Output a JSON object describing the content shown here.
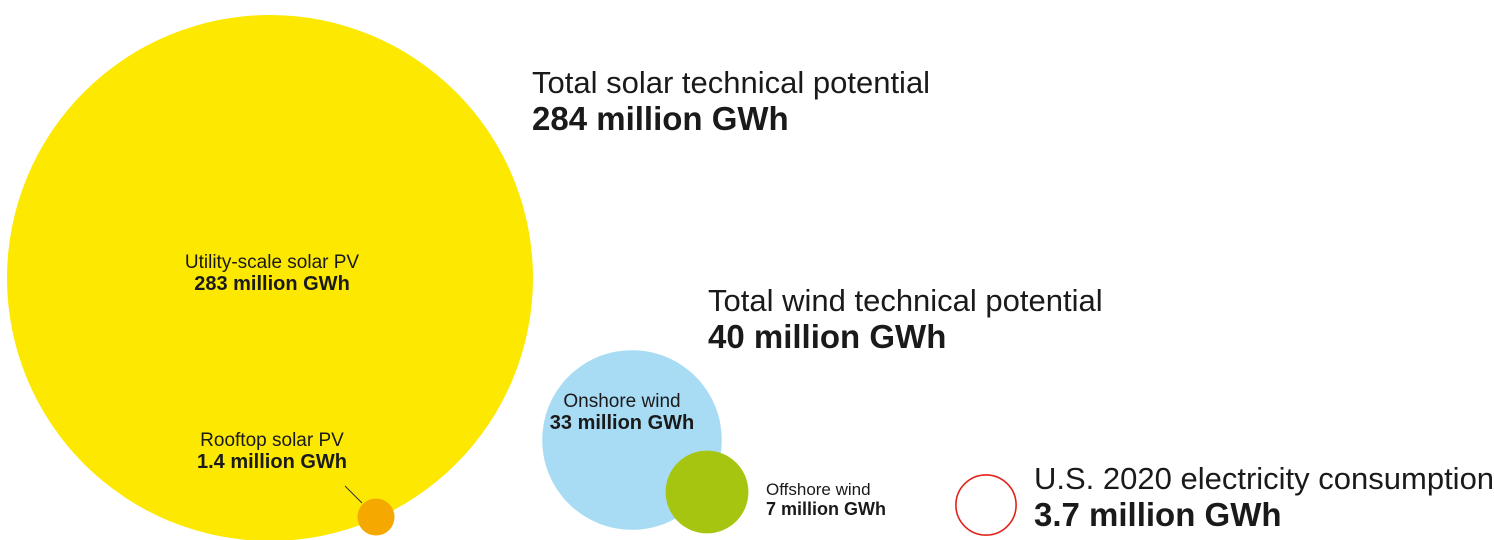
{
  "chart_data": {
    "type": "bubble",
    "unit": "million GWh",
    "groups": [
      {
        "label": "Total solar technical potential",
        "value_text": "284 million GWh",
        "value": 284
      },
      {
        "label": "Total wind technical potential",
        "value_text": "40 million GWh",
        "value": 40
      }
    ],
    "bubbles": [
      {
        "label": "Utility-scale solar PV",
        "value_text": "283 million GWh",
        "value": 283,
        "color": "#FCE800"
      },
      {
        "label": "Rooftop solar PV",
        "value_text": "1.4 million GWh",
        "value": 1.4,
        "color": "#F5A800"
      },
      {
        "label": "Onshore wind",
        "value_text": "33 million GWh",
        "value": 33,
        "color": "#A8DBF4"
      },
      {
        "label": "Offshore wind",
        "value_text": "7 million GWh",
        "value": 7,
        "color": "#A6C510"
      },
      {
        "label": "U.S. 2020 electricity consumption",
        "value_text": "3.7 million GWh",
        "value": 3.7,
        "color": "#E2231A",
        "outline": true
      }
    ]
  }
}
